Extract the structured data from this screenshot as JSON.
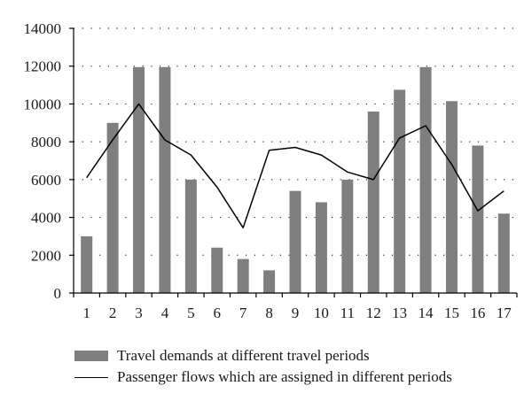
{
  "chart_data": {
    "type": "bar",
    "categories": [
      "1",
      "2",
      "3",
      "4",
      "5",
      "6",
      "7",
      "8",
      "9",
      "10",
      "11",
      "12",
      "13",
      "14",
      "15",
      "16",
      "17"
    ],
    "series": [
      {
        "name": "Travel demands at different travel periods",
        "type": "bar",
        "color": "#7f7f7f",
        "values": [
          3000,
          9000,
          11950,
          11950,
          6000,
          2400,
          1800,
          1200,
          5400,
          4800,
          6000,
          9600,
          10750,
          11950,
          10150,
          7800,
          4200
        ]
      },
      {
        "name": "Passenger flows which are assigned in different periods",
        "type": "line",
        "color": "#000000",
        "values": [
          6100,
          8100,
          10000,
          8100,
          7300,
          5600,
          3450,
          7550,
          7700,
          7300,
          6400,
          6000,
          8200,
          8850,
          6800,
          4350,
          5400
        ]
      }
    ],
    "yticks": [
      "0",
      "2000",
      "4000",
      "6000",
      "8000",
      "10000",
      "12000",
      "14000"
    ],
    "ylim": [
      0,
      14000
    ],
    "grid": "horizontal dotted",
    "legend": "bottom"
  }
}
